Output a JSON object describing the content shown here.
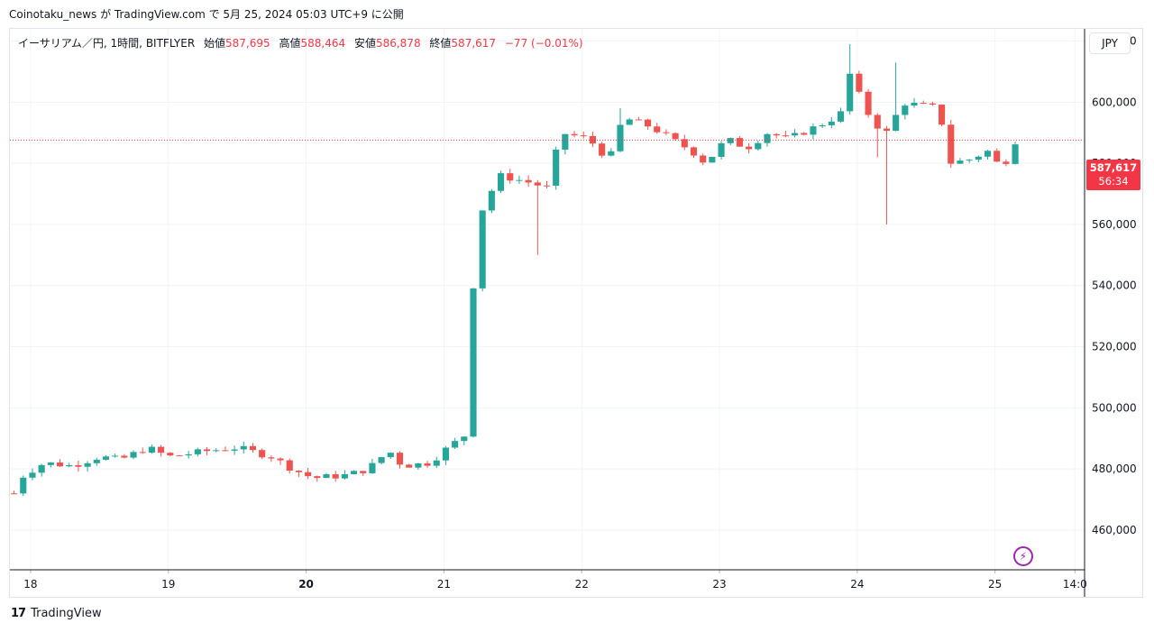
{
  "header": {
    "publish_line": "Coinotaku_news が TradingView.com で 5月 25, 2024 05:03 UTC+9 に公開"
  },
  "legend": {
    "symbol": "イーサリアム／円, 1時間, BITFLYER",
    "open_label": "始値",
    "open_value": "587,695",
    "high_label": "高値",
    "high_value": "588,464",
    "low_label": "安値",
    "low_value": "586,878",
    "close_label": "終値",
    "close_value": "587,617",
    "change": "−77 (−0.01%)"
  },
  "currency_button": "JPY",
  "price_tag": {
    "price": "587,617",
    "countdown": "56:34"
  },
  "brand": {
    "logo": "17",
    "name": "TradingView"
  },
  "colors": {
    "up": "#26a69a",
    "down": "#ef5350",
    "grid": "#f0f3fa",
    "last_price_line": "#f23645",
    "accent": "#9c27b0"
  },
  "icons": {
    "alert": "lightning-icon"
  },
  "chart_data": {
    "type": "candlestick",
    "title": "イーサリアム／円, 1時間, BITFLYER",
    "y_ticks": [
      "460,000",
      "480,000",
      "500,000",
      "520,000",
      "540,000",
      "560,000",
      "580,000",
      "600,000",
      "620,000"
    ],
    "ylim": [
      447000,
      624000
    ],
    "x_ticks": [
      {
        "label": "18",
        "day": 0.0
      },
      {
        "label": "19",
        "day": 1.0
      },
      {
        "label": "20",
        "day": 2.0,
        "bold": true
      },
      {
        "label": "21",
        "day": 3.0
      },
      {
        "label": "22",
        "day": 4.0
      },
      {
        "label": "23",
        "day": 5.0
      },
      {
        "label": "24",
        "day": 6.0
      },
      {
        "label": "25",
        "day": 7.0
      },
      {
        "label": "14:0",
        "day": 7.58
      }
    ],
    "xlim": [
      -0.15,
      7.65
    ],
    "last_price": 587617,
    "anchors": [
      [
        -0.12,
        472000
      ],
      [
        -0.05,
        478000
      ],
      [
        0.1,
        482000
      ],
      [
        0.3,
        481000
      ],
      [
        0.5,
        484000
      ],
      [
        0.65,
        483000
      ],
      [
        0.85,
        487000
      ],
      [
        1.0,
        484000
      ],
      [
        1.3,
        486000
      ],
      [
        1.5,
        487000
      ],
      [
        1.75,
        484000
      ],
      [
        1.9,
        480000
      ],
      [
        2.05,
        477000
      ],
      [
        2.3,
        478000
      ],
      [
        2.45,
        480000
      ],
      [
        2.6,
        486000
      ],
      [
        2.7,
        481000
      ],
      [
        2.9,
        482000
      ],
      [
        3.0,
        486000
      ],
      [
        3.15,
        491000
      ],
      [
        3.2,
        535000
      ],
      [
        3.28,
        565000
      ],
      [
        3.4,
        576000
      ],
      [
        3.6,
        574000
      ],
      [
        3.75,
        572000
      ],
      [
        3.85,
        590000
      ],
      [
        4.05,
        588000
      ],
      [
        4.2,
        581000
      ],
      [
        4.3,
        595000
      ],
      [
        4.5,
        592000
      ],
      [
        4.65,
        588000
      ],
      [
        4.8,
        584000
      ],
      [
        4.9,
        580000
      ],
      [
        5.05,
        588000
      ],
      [
        5.2,
        585000
      ],
      [
        5.35,
        590000
      ],
      [
        5.5,
        588000
      ],
      [
        5.65,
        591000
      ],
      [
        5.8,
        594000
      ],
      [
        5.9,
        597000
      ],
      [
        5.95,
        610000
      ],
      [
        6.05,
        598000
      ],
      [
        6.15,
        592000
      ],
      [
        6.25,
        589000
      ],
      [
        6.3,
        600000
      ],
      [
        6.45,
        599000
      ],
      [
        6.6,
        598000
      ],
      [
        6.65,
        580000
      ],
      [
        6.8,
        581000
      ],
      [
        6.95,
        584000
      ],
      [
        7.05,
        578000
      ],
      [
        7.15,
        587617
      ]
    ],
    "wick_spikes": [
      [
        3.65,
        550000,
        "low"
      ],
      [
        6.22,
        560000,
        "low"
      ],
      [
        5.93,
        619000,
        "high"
      ],
      [
        6.25,
        613000,
        "high"
      ],
      [
        6.12,
        582000,
        "low"
      ],
      [
        4.3,
        598000,
        "high"
      ]
    ]
  }
}
